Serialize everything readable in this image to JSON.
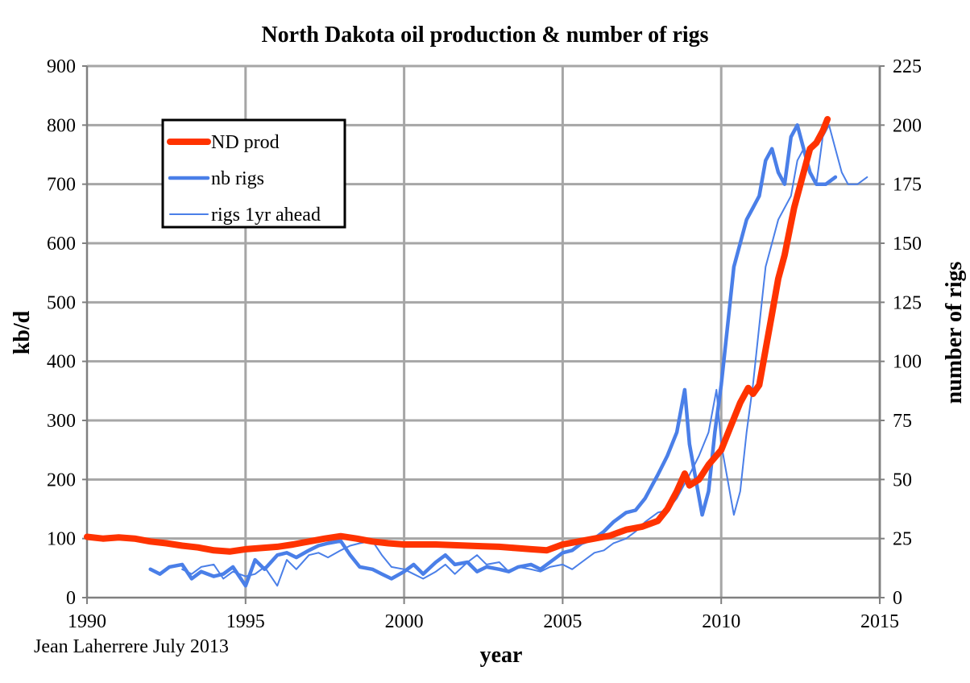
{
  "chart_data": {
    "type": "line",
    "title": "North Dakota oil production & number of rigs",
    "xlabel": "year",
    "ylabel": "kb/d",
    "y2label": "number of rigs",
    "credit": "Jean Laherrere July 2013",
    "xlim": [
      1990,
      2015
    ],
    "ylim": [
      0,
      900
    ],
    "y2lim": [
      0,
      225
    ],
    "grid": true,
    "legend_position": "upper-left",
    "x_ticks": [
      "1990",
      "1995",
      "2000",
      "2005",
      "2010",
      "2015"
    ],
    "y_ticks": [
      "0",
      "100",
      "200",
      "300",
      "400",
      "500",
      "600",
      "700",
      "800",
      "900"
    ],
    "y2_ticks": [
      "0",
      "25",
      "50",
      "75",
      "100",
      "125",
      "150",
      "175",
      "200",
      "225"
    ],
    "series": [
      {
        "name": "ND prod",
        "axis": "left",
        "color": "#ff3300",
        "style": "thick",
        "x": [
          1990.0,
          1990.5,
          1991.0,
          1991.5,
          1992.0,
          1992.5,
          1993.0,
          1993.5,
          1994.0,
          1994.5,
          1995.0,
          1995.5,
          1996.0,
          1996.5,
          1997.0,
          1997.5,
          1998.0,
          1998.5,
          1999.0,
          1999.5,
          2000.0,
          2000.5,
          2001.0,
          2001.5,
          2002.0,
          2002.5,
          2003.0,
          2003.5,
          2004.0,
          2004.5,
          2005.0,
          2005.5,
          2006.0,
          2006.5,
          2007.0,
          2007.5,
          2008.0,
          2008.3,
          2008.6,
          2008.85,
          2009.0,
          2009.3,
          2009.6,
          2010.0,
          2010.3,
          2010.6,
          2010.85,
          2011.0,
          2011.2,
          2011.4,
          2011.6,
          2011.8,
          2012.0,
          2012.3,
          2012.6,
          2012.8,
          2013.0,
          2013.2,
          2013.35
        ],
        "values": [
          103,
          100,
          102,
          100,
          95,
          92,
          88,
          85,
          80,
          78,
          82,
          84,
          86,
          90,
          95,
          100,
          104,
          100,
          95,
          92,
          90,
          90,
          90,
          89,
          88,
          87,
          86,
          84,
          82,
          80,
          90,
          95,
          100,
          105,
          115,
          120,
          130,
          150,
          180,
          210,
          190,
          200,
          225,
          250,
          290,
          330,
          355,
          345,
          360,
          420,
          480,
          540,
          580,
          660,
          720,
          760,
          770,
          790,
          810
        ]
      },
      {
        "name": "nb rigs",
        "axis": "right",
        "color": "#4a7fe8",
        "style": "medium",
        "x": [
          1992.0,
          1992.3,
          1992.6,
          1993.0,
          1993.3,
          1993.6,
          1994.0,
          1994.3,
          1994.6,
          1995.0,
          1995.3,
          1995.6,
          1996.0,
          1996.3,
          1996.6,
          1997.0,
          1997.3,
          1997.6,
          1998.0,
          1998.3,
          1998.6,
          1999.0,
          1999.3,
          1999.6,
          2000.0,
          2000.3,
          2000.6,
          2001.0,
          2001.3,
          2001.6,
          2002.0,
          2002.3,
          2002.6,
          2003.0,
          2003.3,
          2003.6,
          2004.0,
          2004.3,
          2004.6,
          2005.0,
          2005.3,
          2005.6,
          2006.0,
          2006.3,
          2006.6,
          2007.0,
          2007.3,
          2007.6,
          2008.0,
          2008.3,
          2008.6,
          2008.85,
          2009.0,
          2009.2,
          2009.4,
          2009.6,
          2009.8,
          2010.0,
          2010.2,
          2010.4,
          2010.6,
          2010.8,
          2011.0,
          2011.2,
          2011.4,
          2011.6,
          2011.8,
          2012.0,
          2012.2,
          2012.4,
          2012.6,
          2012.8,
          2013.0,
          2013.3,
          2013.6
        ],
        "values": [
          12,
          10,
          13,
          14,
          8,
          11,
          9,
          10,
          13,
          5,
          16,
          12,
          18,
          19,
          17,
          20,
          22,
          23,
          24,
          18,
          13,
          12,
          10,
          8,
          11,
          14,
          10,
          15,
          18,
          14,
          15,
          11,
          13,
          12,
          11,
          13,
          14,
          12,
          15,
          19,
          20,
          23,
          25,
          28,
          32,
          36,
          37,
          42,
          52,
          60,
          70,
          88,
          65,
          50,
          35,
          45,
          70,
          90,
          115,
          140,
          150,
          160,
          165,
          170,
          185,
          190,
          180,
          175,
          195,
          200,
          190,
          180,
          175,
          175,
          178
        ]
      },
      {
        "name": "rigs 1yr ahead",
        "axis": "right",
        "color": "#4a7fe8",
        "style": "thin",
        "x": [
          1993.0,
          1993.3,
          1993.6,
          1994.0,
          1994.3,
          1994.6,
          1995.0,
          1995.3,
          1995.6,
          1996.0,
          1996.3,
          1996.6,
          1997.0,
          1997.3,
          1997.6,
          1998.0,
          1998.3,
          1998.6,
          1999.0,
          1999.3,
          1999.6,
          2000.0,
          2000.3,
          2000.6,
          2001.0,
          2001.3,
          2001.6,
          2002.0,
          2002.3,
          2002.6,
          2003.0,
          2003.3,
          2003.6,
          2004.0,
          2004.3,
          2004.6,
          2005.0,
          2005.3,
          2005.6,
          2006.0,
          2006.3,
          2006.6,
          2007.0,
          2007.3,
          2007.6,
          2008.0,
          2008.3,
          2008.6,
          2009.0,
          2009.3,
          2009.6,
          2009.85,
          2010.0,
          2010.2,
          2010.4,
          2010.6,
          2010.8,
          2011.0,
          2011.2,
          2011.4,
          2011.6,
          2011.8,
          2012.0,
          2012.2,
          2012.4,
          2012.6,
          2012.8,
          2013.0,
          2013.2,
          2013.4,
          2013.6,
          2013.8,
          2014.0,
          2014.3,
          2014.6
        ],
        "values": [
          12,
          10,
          13,
          14,
          8,
          11,
          9,
          10,
          13,
          5,
          16,
          12,
          18,
          19,
          17,
          20,
          22,
          23,
          24,
          18,
          13,
          12,
          10,
          8,
          11,
          14,
          10,
          15,
          18,
          14,
          15,
          11,
          13,
          12,
          11,
          13,
          14,
          12,
          15,
          19,
          20,
          23,
          25,
          28,
          32,
          36,
          37,
          42,
          52,
          60,
          70,
          88,
          65,
          50,
          35,
          45,
          70,
          90,
          115,
          140,
          150,
          160,
          165,
          170,
          185,
          190,
          180,
          175,
          195,
          200,
          190,
          180,
          175,
          175,
          178
        ]
      }
    ]
  }
}
